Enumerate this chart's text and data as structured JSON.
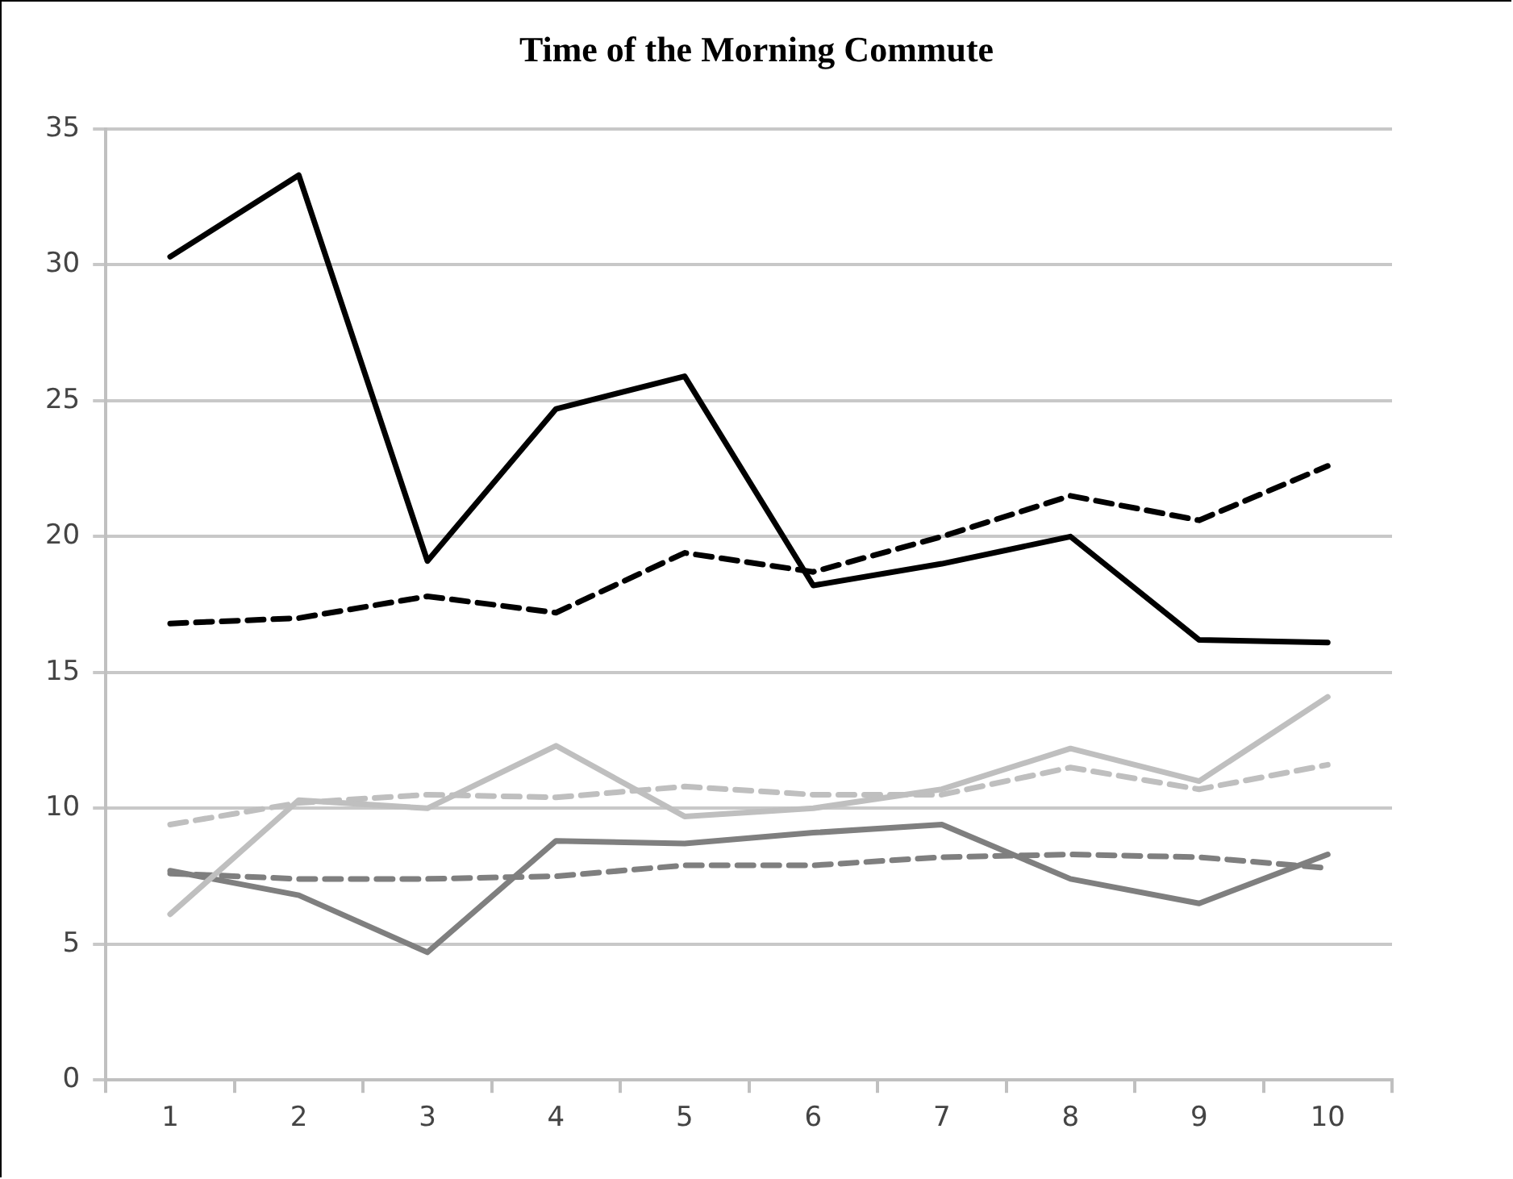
{
  "chart_data": {
    "type": "line",
    "title": "Time of the Morning Commute",
    "categories": [
      "1",
      "2",
      "3",
      "4",
      "5",
      "6",
      "7",
      "8",
      "9",
      "10"
    ],
    "ylim": [
      0,
      35
    ],
    "yticks": [
      0,
      5,
      10,
      15,
      20,
      25,
      30,
      35
    ],
    "grid": "y",
    "legend": false,
    "marker": "none",
    "series": [
      {
        "color": "#000000",
        "line_style": "solid",
        "values": [
          30.3,
          33.3,
          19.1,
          24.7,
          25.9,
          18.2,
          19.0,
          20.0,
          16.2,
          16.1
        ]
      },
      {
        "color": "#000000",
        "line_style": "dashed",
        "values": [
          16.8,
          17.0,
          17.8,
          17.2,
          19.4,
          18.7,
          20.0,
          21.5,
          20.6,
          22.6
        ]
      },
      {
        "color": "#bfbfbf",
        "line_style": "solid",
        "values": [
          6.1,
          10.3,
          10.0,
          12.3,
          9.7,
          10.0,
          10.7,
          12.2,
          11.0,
          14.1
        ]
      },
      {
        "color": "#bfbfbf",
        "line_style": "dashed",
        "values": [
          9.4,
          10.2,
          10.5,
          10.4,
          10.8,
          10.5,
          10.5,
          11.5,
          10.7,
          11.6
        ]
      },
      {
        "color": "#7f7f7f",
        "line_style": "solid",
        "values": [
          7.7,
          6.8,
          4.7,
          8.8,
          8.7,
          9.1,
          9.4,
          7.4,
          6.5,
          8.3
        ]
      },
      {
        "color": "#7f7f7f",
        "line_style": "dashed",
        "values": [
          7.6,
          7.4,
          7.4,
          7.5,
          7.9,
          7.9,
          8.2,
          8.3,
          8.2,
          7.8
        ]
      }
    ]
  }
}
